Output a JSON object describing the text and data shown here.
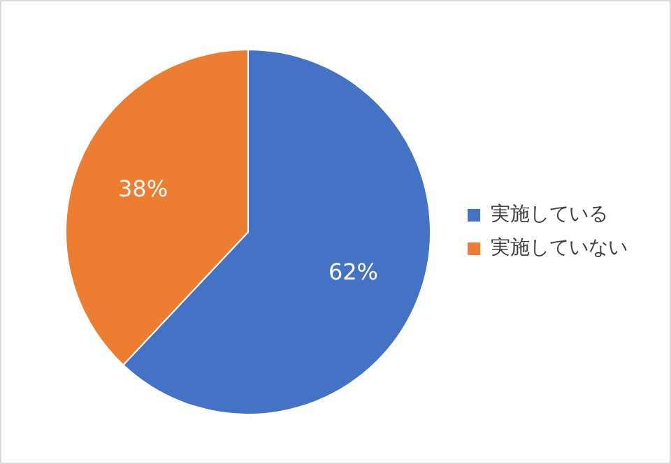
{
  "chart_data": {
    "type": "pie",
    "categories": [
      "実施している",
      "実施していない"
    ],
    "values": [
      62,
      38
    ],
    "colors": [
      "#4472c4",
      "#ed7d31"
    ],
    "value_labels": [
      "62%",
      "38%"
    ],
    "legend": "right"
  }
}
